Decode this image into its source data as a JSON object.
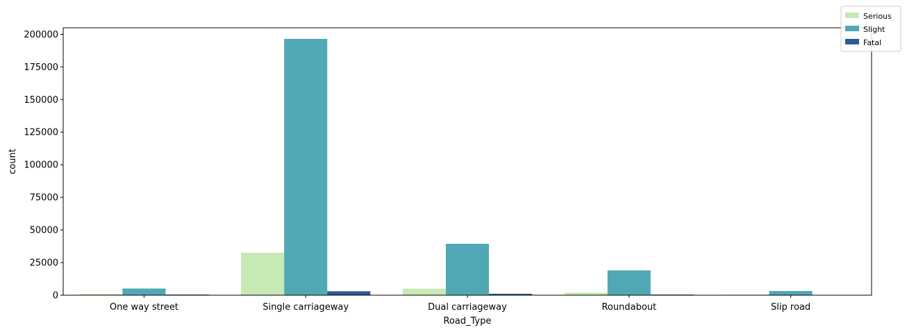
{
  "chart_data": {
    "type": "bar",
    "xlabel": "Road_Type",
    "ylabel": "count",
    "categories": [
      "One way street",
      "Single carriageway",
      "Dual carriageway",
      "Roundabout",
      "Slip road"
    ],
    "ylim": [
      0,
      205000
    ],
    "yticks": [
      0,
      25000,
      50000,
      75000,
      100000,
      125000,
      150000,
      175000,
      200000
    ],
    "ytick_labels": [
      "0",
      "25000",
      "50000",
      "75000",
      "100000",
      "125000",
      "150000",
      "175000",
      "200000"
    ],
    "series": [
      {
        "name": "Serious",
        "color": "#c7e9b4",
        "values": [
          1000,
          32500,
          5000,
          2000,
          400
        ]
      },
      {
        "name": "Slight",
        "color": "#50a8b4",
        "values": [
          5100,
          196500,
          39400,
          19000,
          3200
        ]
      },
      {
        "name": "Fatal",
        "color": "#2c5a97",
        "values": [
          500,
          3000,
          1100,
          500,
          80
        ]
      }
    ],
    "legend_position": "top-right",
    "grid": false
  }
}
